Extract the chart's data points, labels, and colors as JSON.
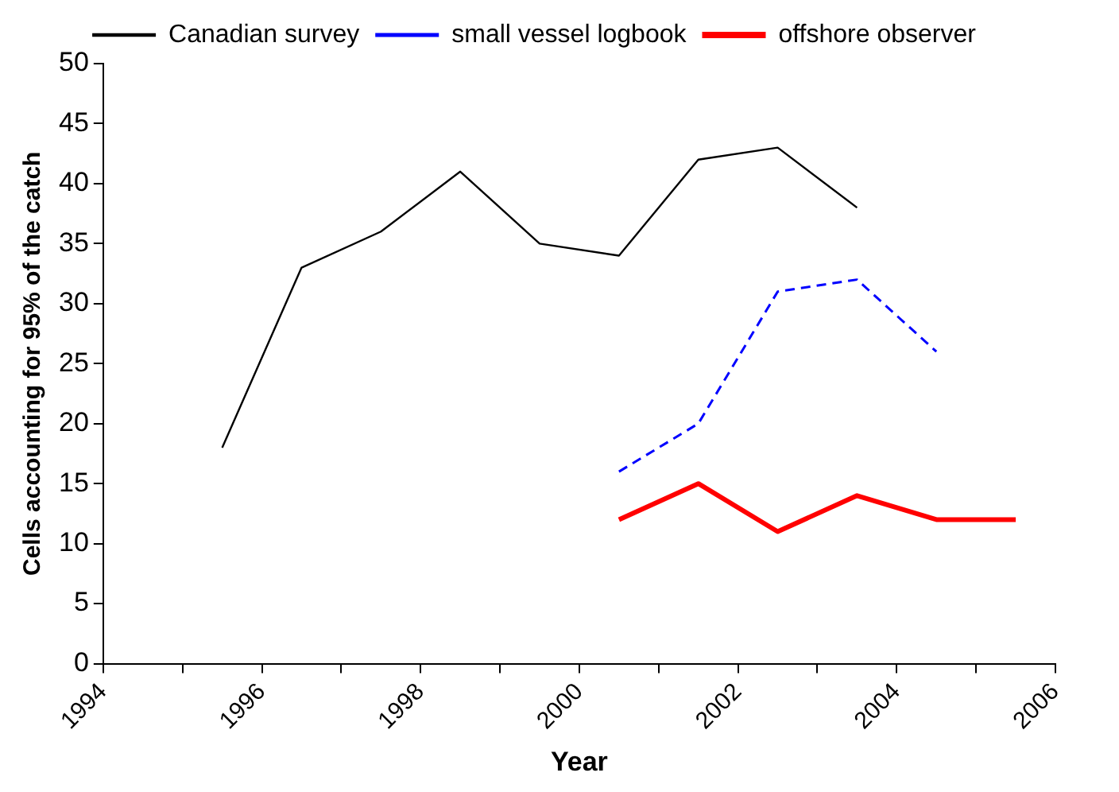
{
  "chart_data": {
    "type": "line",
    "xlabel": "Year",
    "ylabel": "Cells accounting for 95% of the catch",
    "xlim": [
      1994,
      2006
    ],
    "xticks": [
      1994,
      {
        "value": 1995,
        "label": null
      },
      1996,
      {
        "value": 1997,
        "label": null
      },
      1998,
      {
        "value": 1999,
        "label": null
      },
      2000,
      {
        "value": 2001,
        "label": null
      },
      2002,
      {
        "value": 2003,
        "label": null
      },
      2004,
      {
        "value": 2005,
        "label": null
      },
      2006
    ],
    "ylim": [
      0,
      50
    ],
    "yticks": [
      0,
      5,
      10,
      15,
      20,
      25,
      30,
      35,
      40,
      45,
      50
    ],
    "grid": false,
    "legend": "top",
    "marker": "none",
    "series": [
      {
        "name": "Canadian survey",
        "color": "#000000",
        "line_style": "solid",
        "x": [
          1995.5,
          1996.5,
          1997.5,
          1998.5,
          1999.5,
          2000.5,
          2001.5,
          2002.5,
          2003.5
        ],
        "values": [
          18,
          33,
          36,
          41,
          35,
          34,
          42,
          43,
          38
        ]
      },
      {
        "name": "small vessel logbook",
        "color": "#0000ff",
        "line_style": "dashed",
        "x": [
          2000.5,
          2001.5,
          2002.5,
          2003.5,
          2004.5
        ],
        "values": [
          16,
          20,
          31,
          32,
          26
        ]
      },
      {
        "name": "offshore observer",
        "color": "#ff0000",
        "line_style": "solid",
        "x": [
          2000.5,
          2001.5,
          2002.5,
          2003.5,
          2004.5,
          2005.5
        ],
        "values": [
          12,
          15,
          11,
          14,
          12,
          12
        ]
      }
    ]
  }
}
